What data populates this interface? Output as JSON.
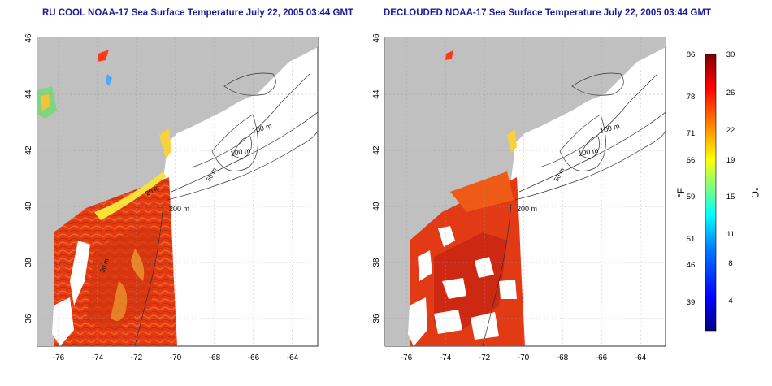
{
  "panels": [
    {
      "title": "RU COOL NOAA-17 Sea Surface Temperature July 22, 2005 03:44 GMT",
      "variant": "raw"
    },
    {
      "title": "DECLOUDED NOAA-17 Sea Surface Temperature July 22, 2005 03:44 GMT",
      "variant": "declouded"
    }
  ],
  "map_axes": {
    "lon_ticks": [
      "-76",
      "-74",
      "-72",
      "-70",
      "-68",
      "-66",
      "-64"
    ],
    "lat_ticks": [
      "36",
      "38",
      "40",
      "42",
      "44",
      "46"
    ],
    "lon_range": [
      -77.2,
      -62.8
    ],
    "lat_range": [
      35.0,
      46.0
    ],
    "grid": "dotted"
  },
  "contour_labels": [
    "100 m",
    "100 m",
    "50 m",
    "200 m",
    "20 m",
    "50 m"
  ],
  "colorbar": {
    "fahrenheit_label": "°F",
    "celsius_label": "°C",
    "fahrenheit_ticks": [
      "86",
      "78",
      "71",
      "66",
      "59",
      "51",
      "46",
      "39"
    ],
    "celsius_ticks": [
      "30",
      "26",
      "22",
      "19",
      "15",
      "11",
      "8",
      "4"
    ],
    "celsius_range": [
      0,
      30
    ],
    "colors": [
      "#00007f",
      "#0000ff",
      "#007fff",
      "#00ffff",
      "#7fff7f",
      "#ffff00",
      "#ff7f00",
      "#ff0000",
      "#7f0000"
    ]
  },
  "colors": {
    "land": "#c0c0c0",
    "sst_warm": "#e83a12",
    "sst_hot": "#b31208",
    "title": "#1a1aa0"
  }
}
